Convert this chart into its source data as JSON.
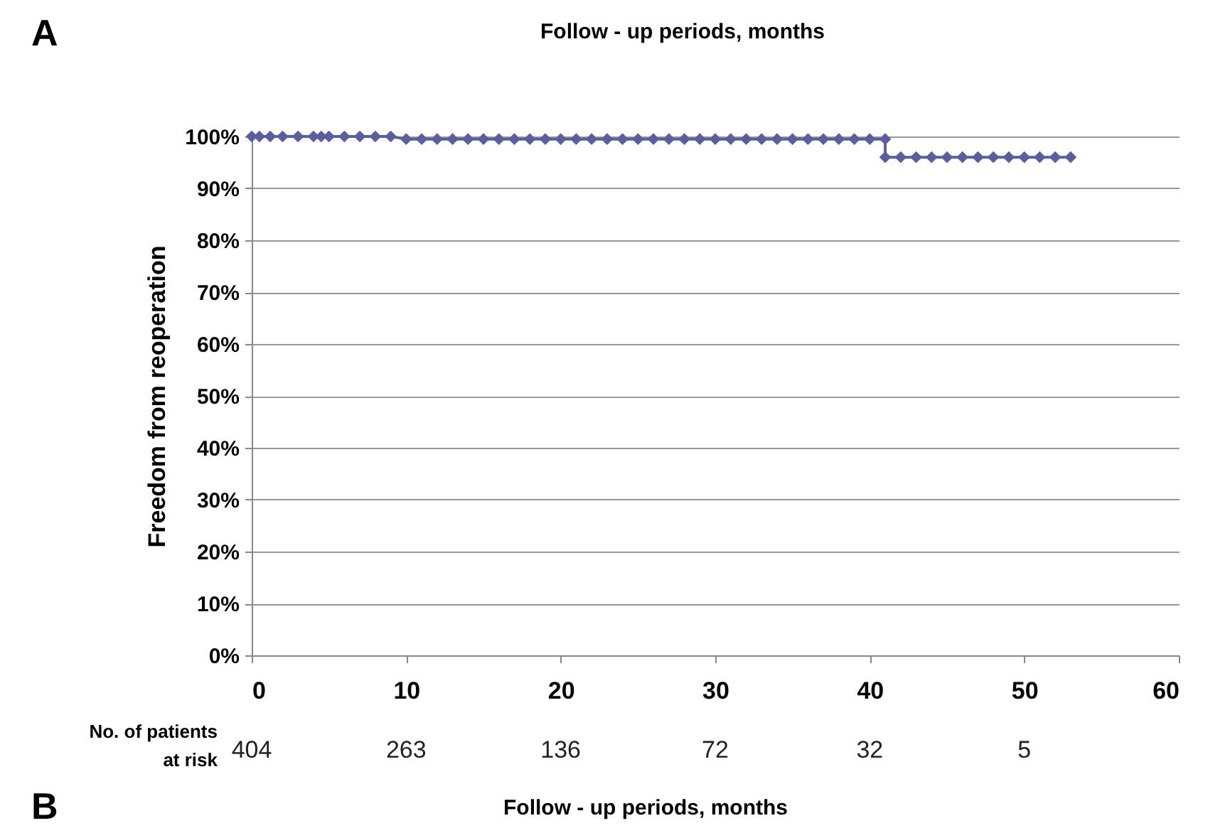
{
  "chart_data": {
    "type": "line",
    "title": "Follow - up periods, months",
    "xlabel": "Follow - up periods, months",
    "ylabel": "Freedom from reoperation",
    "x": [
      0,
      0.5,
      1.2,
      2,
      3,
      4,
      4.5,
      5,
      6,
      7,
      8,
      9,
      10,
      11,
      12,
      13,
      14,
      15,
      16,
      17,
      18,
      19,
      20,
      21,
      22,
      23,
      24,
      25,
      26,
      27,
      28,
      29,
      30,
      31,
      32,
      33,
      34,
      35,
      36,
      37,
      38,
      39,
      40,
      41,
      41,
      42,
      43,
      44,
      45,
      46,
      47,
      48,
      49,
      50,
      51,
      52,
      53
    ],
    "series": [
      {
        "color": "#5b5e9e",
        "values": [
          100,
          100,
          100,
          100,
          100,
          100,
          100,
          100,
          100,
          100,
          100,
          100,
          99.5,
          99.5,
          99.5,
          99.5,
          99.5,
          99.5,
          99.5,
          99.5,
          99.5,
          99.5,
          99.5,
          99.5,
          99.5,
          99.5,
          99.5,
          99.5,
          99.5,
          99.5,
          99.5,
          99.5,
          99.5,
          99.5,
          99.5,
          99.5,
          99.5,
          99.5,
          99.5,
          99.5,
          99.5,
          99.5,
          99.5,
          99.5,
          96,
          96,
          96,
          96,
          96,
          96,
          96,
          96,
          96,
          96,
          96,
          96,
          96
        ]
      }
    ],
    "xlim": [
      0,
      60
    ],
    "xticks": [
      0,
      10,
      20,
      30,
      40,
      50,
      60
    ],
    "ylim": [
      0,
      100
    ],
    "yticks": [
      {
        "value": 0,
        "label": "0%"
      },
      {
        "value": 10,
        "label": "10%"
      },
      {
        "value": 20,
        "label": "20%"
      },
      {
        "value": 30,
        "label": "30%"
      },
      {
        "value": 40,
        "label": "40%"
      },
      {
        "value": 50,
        "label": "50%"
      },
      {
        "value": 60,
        "label": "60%"
      },
      {
        "value": 70,
        "label": "70%"
      },
      {
        "value": 80,
        "label": "80%"
      },
      {
        "value": 90,
        "label": "90%"
      },
      {
        "value": 100,
        "label": "100%"
      }
    ],
    "grid": "y",
    "marker": "diamond",
    "line_style": "solid",
    "annotations": [
      "A",
      "B",
      "No. of patients",
      "at risk",
      "404",
      "263",
      "136",
      "72",
      "32",
      "5"
    ]
  }
}
